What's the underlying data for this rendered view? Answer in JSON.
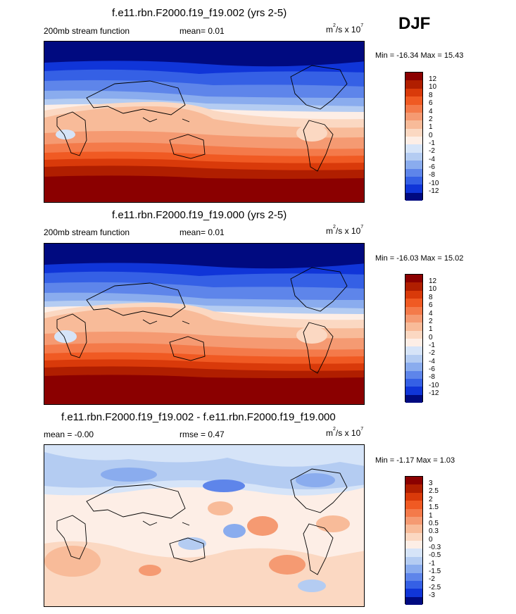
{
  "season": "DJF",
  "panels": [
    {
      "title": "f.e11.rbn.F2000.f19_f19.002 (yrs 2-5)",
      "left_label": "200mb stream function",
      "center_label": "mean=  0.01",
      "units_base": "m",
      "units_sup": "2",
      "units_mid": "/s x 10",
      "units_exp": "7",
      "minmax": "Min = -16.34 Max =  15.43",
      "levels": [
        "12",
        "10",
        "8",
        "6",
        "4",
        "2",
        "1",
        "0",
        "-1",
        "-2",
        "-4",
        "-6",
        "-8",
        "-10",
        "-12"
      ]
    },
    {
      "title": "f.e11.rbn.F2000.f19_f19.000 (yrs 2-5)",
      "left_label": "200mb stream function",
      "center_label": "mean=  0.01",
      "units_base": "m",
      "units_sup": "2",
      "units_mid": "/s x 10",
      "units_exp": "7",
      "minmax": "Min = -16.03 Max =  15.02",
      "levels": [
        "12",
        "10",
        "8",
        "6",
        "4",
        "2",
        "1",
        "0",
        "-1",
        "-2",
        "-4",
        "-6",
        "-8",
        "-10",
        "-12"
      ]
    },
    {
      "title": "f.e11.rbn.F2000.f19_f19.002 - f.e11.rbn.F2000.f19_f19.000",
      "left_label": "mean =  -0.00",
      "center_label": "rmse =  0.47",
      "units_base": "m",
      "units_sup": "2",
      "units_mid": "/s x 10",
      "units_exp": "7",
      "minmax": "Min =  -1.17 Max =   1.03",
      "levels": [
        "3",
        "2.5",
        "2",
        "1.5",
        "1",
        "0.5",
        "0.3",
        "0",
        "-0.3",
        "-0.5",
        "-1",
        "-1.5",
        "-2",
        "-2.5",
        "-3"
      ]
    }
  ],
  "colors": {
    "scale": [
      "#8b0000",
      "#b01e00",
      "#d93a0a",
      "#f05a23",
      "#f47a4a",
      "#f59a72",
      "#f8bb99",
      "#fbd8c2",
      "#fdeee6",
      "#d6e4f8",
      "#b4ccf2",
      "#8aacee",
      "#5e85ea",
      "#3560e5",
      "#1035d8",
      "#000a80"
    ]
  }
}
